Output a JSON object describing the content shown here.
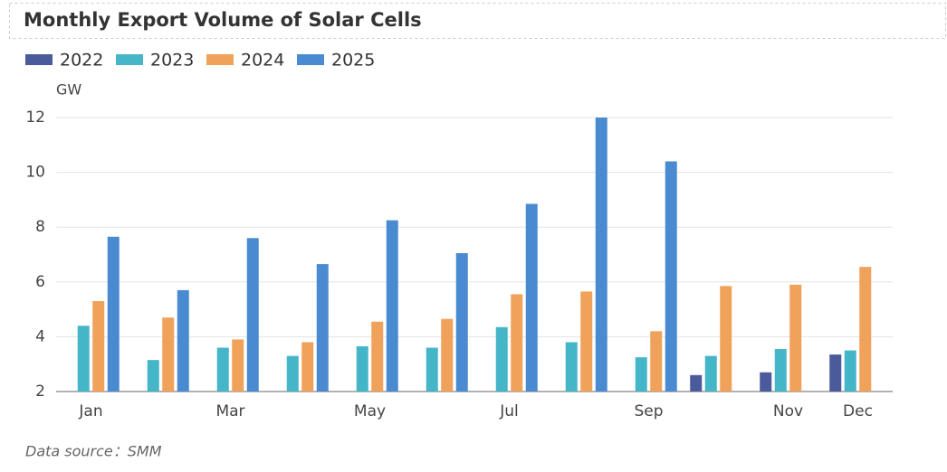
{
  "chart_data": {
    "type": "bar",
    "title": "Monthly Export Volume of Solar Cells",
    "y_label": "GW",
    "source": "Data source：SMM",
    "categories": [
      "Jan",
      null,
      "Mar",
      null,
      "May",
      null,
      "Jul",
      null,
      "Sep",
      null,
      "Nov",
      "Dec"
    ],
    "series": [
      {
        "name": "2022",
        "color": "#4a5a9a",
        "values": [
          null,
          null,
          null,
          null,
          null,
          null,
          null,
          null,
          null,
          2.6,
          2.7,
          3.35
        ]
      },
      {
        "name": "2023",
        "color": "#45b5c8",
        "values": [
          4.4,
          3.15,
          3.6,
          3.3,
          3.65,
          3.6,
          4.35,
          3.8,
          3.25,
          3.3,
          3.55,
          3.5
        ]
      },
      {
        "name": "2024",
        "color": "#f0a15a",
        "values": [
          5.3,
          4.7,
          3.9,
          3.8,
          4.55,
          4.65,
          5.55,
          5.65,
          4.2,
          5.85,
          5.9,
          6.55
        ]
      },
      {
        "name": "2025",
        "color": "#4a8ad0",
        "values": [
          7.65,
          5.7,
          7.6,
          6.65,
          8.25,
          7.05,
          8.85,
          12.0,
          10.4,
          null,
          null,
          null
        ]
      }
    ],
    "ylim": [
      2,
      12
    ],
    "yticks": [
      2,
      4,
      6,
      8,
      10,
      12
    ],
    "grid": true
  }
}
